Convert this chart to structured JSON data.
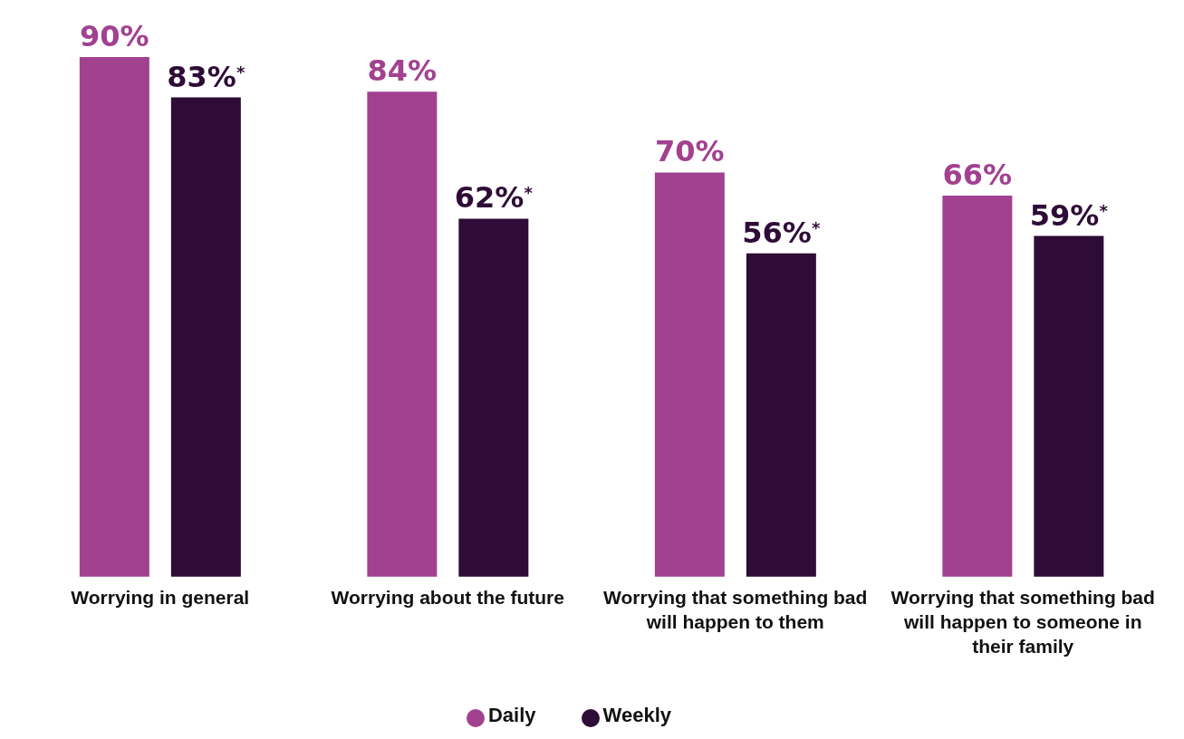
{
  "chart_data": {
    "type": "bar",
    "categories": [
      "Worrying in general",
      "Worrying about the future",
      "Worrying that something bad will happen to them",
      "Worrying that something bad will happen to someone in their family"
    ],
    "series": [
      {
        "name": "Daily",
        "color": "#a24190",
        "values": [
          90,
          84,
          70,
          66
        ],
        "value_labels": [
          "90%",
          "84%",
          "70%",
          "66%"
        ]
      },
      {
        "name": "Weekly",
        "color": "#2e0c37",
        "values": [
          83,
          62,
          56,
          59
        ],
        "value_labels": [
          "83%$^{*}$",
          "62%$^{*}$",
          "56%$^{*}$",
          "59%$^{*}$"
        ]
      }
    ],
    "legend": "bottom"
  }
}
